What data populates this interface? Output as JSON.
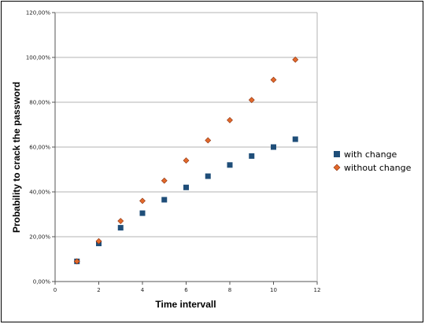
{
  "chart_data": {
    "type": "scatter",
    "xlabel": "Time intervall",
    "ylabel": "Probability to crack the password",
    "xlim": [
      0,
      12
    ],
    "ylim": [
      0,
      1.2
    ],
    "x_ticks": [
      "0",
      "2",
      "4",
      "6",
      "8",
      "10",
      "12"
    ],
    "y_ticks": [
      "0,00%",
      "20,00%",
      "40,00%",
      "60,00%",
      "80,00%",
      "100,00%",
      "120,00%"
    ],
    "grid": "horizontal",
    "legend_position": "right",
    "series": [
      {
        "name": "with change",
        "marker": "square",
        "color": "#1f4e79",
        "x": [
          1,
          2,
          3,
          4,
          5,
          6,
          7,
          8,
          9,
          10,
          11
        ],
        "y": [
          0.09,
          0.17,
          0.24,
          0.305,
          0.365,
          0.42,
          0.47,
          0.52,
          0.56,
          0.6,
          0.635
        ]
      },
      {
        "name": "without change",
        "marker": "diamond",
        "color": "#e2692b",
        "x": [
          1,
          2,
          3,
          4,
          5,
          6,
          7,
          8,
          9,
          10,
          11
        ],
        "y": [
          0.09,
          0.18,
          0.27,
          0.36,
          0.45,
          0.54,
          0.63,
          0.72,
          0.81,
          0.9,
          0.99
        ]
      }
    ]
  }
}
